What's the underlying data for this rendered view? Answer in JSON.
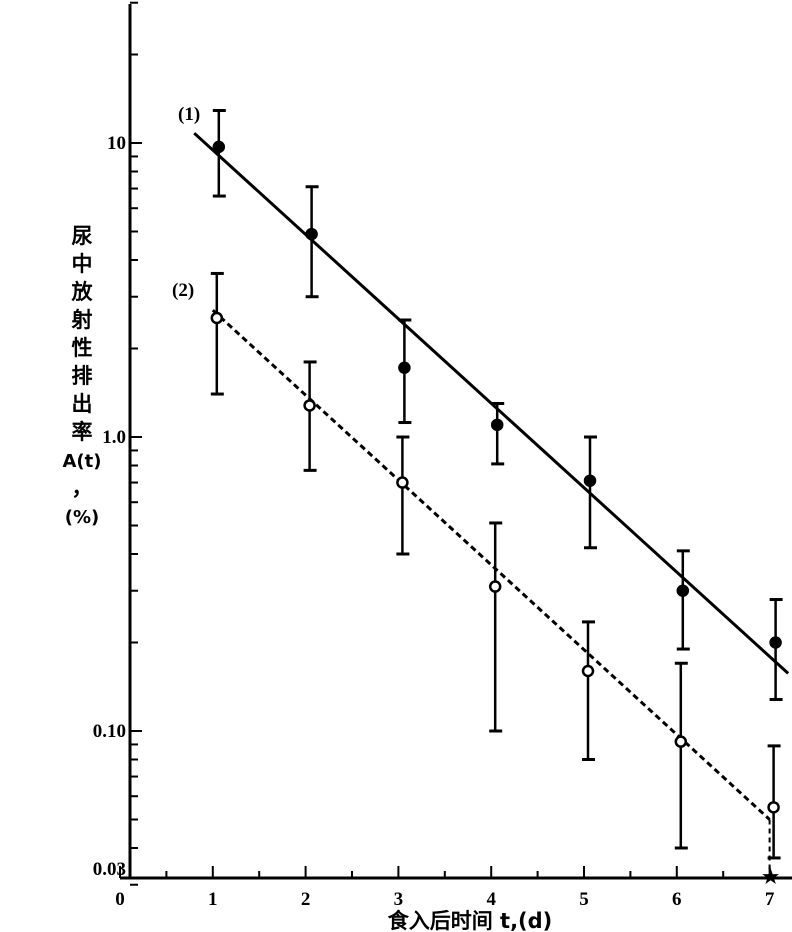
{
  "chart_data": {
    "type": "scatter",
    "title": "",
    "xlabel": "食入后时间 t,(d)",
    "ylabel_chars": [
      "尿",
      "中",
      "放",
      "射",
      "性",
      "排",
      "出",
      "率",
      "A(t)",
      "，",
      "(%)"
    ],
    "ylabel": "尿中放射性排出率A(t)，(%)",
    "yscale": "log",
    "xlim": [
      0,
      7.2
    ],
    "ylim": [
      0.03,
      30
    ],
    "xticks": [
      "0",
      "1",
      "2",
      "3",
      "4",
      "5",
      "6",
      "7"
    ],
    "yticks": [
      {
        "value": 10,
        "label": "10"
      },
      {
        "value": 1,
        "label": "1.0"
      },
      {
        "value": 0.1,
        "label": "0.10"
      },
      {
        "value": 0.03,
        "label": "0.03"
      }
    ],
    "grid": false,
    "series": [
      {
        "name": "(1)",
        "marker": "filled-circle",
        "line": "solid",
        "x": [
          1,
          2,
          3,
          4,
          5,
          6,
          7
        ],
        "y": [
          9.7,
          4.9,
          1.72,
          1.1,
          0.71,
          0.3,
          0.2
        ],
        "err_high": [
          12.9,
          7.1,
          2.5,
          1.3,
          1.0,
          0.41,
          0.28
        ],
        "err_low": [
          6.6,
          3.0,
          1.12,
          0.81,
          0.42,
          0.19,
          0.128
        ],
        "fit_line": [
          [
            0.8,
            10.8
          ],
          [
            7.2,
            0.157
          ]
        ]
      },
      {
        "name": "(2)",
        "marker": "open-circle",
        "line": "dashed",
        "x": [
          1,
          2,
          3,
          4,
          5,
          6,
          7
        ],
        "y": [
          2.54,
          1.28,
          0.7,
          0.31,
          0.16,
          0.092,
          0.055
        ],
        "err_high": [
          3.6,
          1.8,
          1.0,
          0.51,
          0.235,
          0.17,
          0.089
        ],
        "err_low": [
          1.4,
          0.77,
          0.4,
          0.1,
          0.08,
          0.04,
          0.037
        ],
        "fit_line": [
          [
            1.0,
            2.7
          ],
          [
            7.0,
            0.05
          ]
        ],
        "tail_to_axis": [
          [
            7.0,
            0.05
          ],
          [
            7.0,
            0.03
          ]
        ]
      }
    ],
    "annotations": [
      {
        "text": "★",
        "x": 7,
        "y": 0.03
      }
    ]
  }
}
